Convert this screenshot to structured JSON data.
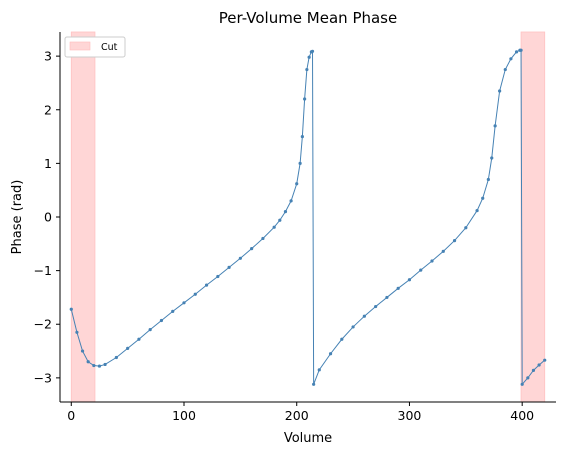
{
  "chart_data": {
    "type": "line",
    "title": "Per-Volume Mean Phase",
    "xlabel": "Volume",
    "ylabel": "Phase (rad)",
    "xlim": [
      -10,
      430
    ],
    "ylim": [
      -3.45,
      3.45
    ],
    "xticks": [
      0,
      100,
      200,
      300,
      400
    ],
    "yticks": [
      3,
      2,
      1,
      0,
      -1,
      -2,
      -3
    ],
    "xtick_labels": [
      "0",
      "100",
      "200",
      "300",
      "400"
    ],
    "ytick_labels": [
      "3",
      "2",
      "1",
      "0",
      "−1",
      "−2",
      "−3"
    ],
    "grid": false,
    "legend": {
      "placement": "top-left",
      "entries": [
        {
          "label": "Cut",
          "color": "#ffd6d6"
        }
      ]
    },
    "cut_regions": [
      {
        "x_start": 0,
        "x_end": 21
      },
      {
        "x_start": 399,
        "x_end": 420
      }
    ],
    "series": [
      {
        "color": "#4682b4",
        "markers": true,
        "x": [
          0,
          5,
          10,
          15,
          20,
          25,
          30,
          40,
          50,
          60,
          70,
          80,
          90,
          100,
          110,
          120,
          130,
          140,
          150,
          160,
          170,
          180,
          185,
          190,
          195,
          200,
          203,
          205,
          207,
          209,
          211,
          213,
          214,
          215,
          220,
          230,
          240,
          250,
          260,
          270,
          280,
          290,
          300,
          310,
          320,
          330,
          340,
          350,
          360,
          365,
          370,
          373,
          376,
          380,
          385,
          390,
          395,
          398,
          399,
          400,
          405,
          410,
          415,
          420
        ],
        "y": [
          -1.72,
          -2.15,
          -2.5,
          -2.7,
          -2.77,
          -2.78,
          -2.75,
          -2.62,
          -2.45,
          -2.28,
          -2.1,
          -1.93,
          -1.76,
          -1.6,
          -1.44,
          -1.27,
          -1.11,
          -0.94,
          -0.77,
          -0.59,
          -0.4,
          -0.19,
          -0.06,
          0.1,
          0.3,
          0.62,
          1.0,
          1.5,
          2.2,
          2.75,
          2.98,
          3.08,
          3.09,
          -3.12,
          -2.85,
          -2.55,
          -2.28,
          -2.05,
          -1.85,
          -1.67,
          -1.5,
          -1.33,
          -1.17,
          -0.99,
          -0.82,
          -0.64,
          -0.44,
          -0.2,
          0.12,
          0.35,
          0.7,
          1.1,
          1.7,
          2.35,
          2.75,
          2.95,
          3.08,
          3.11,
          3.11,
          -3.12,
          -3.0,
          -2.86,
          -2.76,
          -2.67
        ]
      }
    ]
  }
}
